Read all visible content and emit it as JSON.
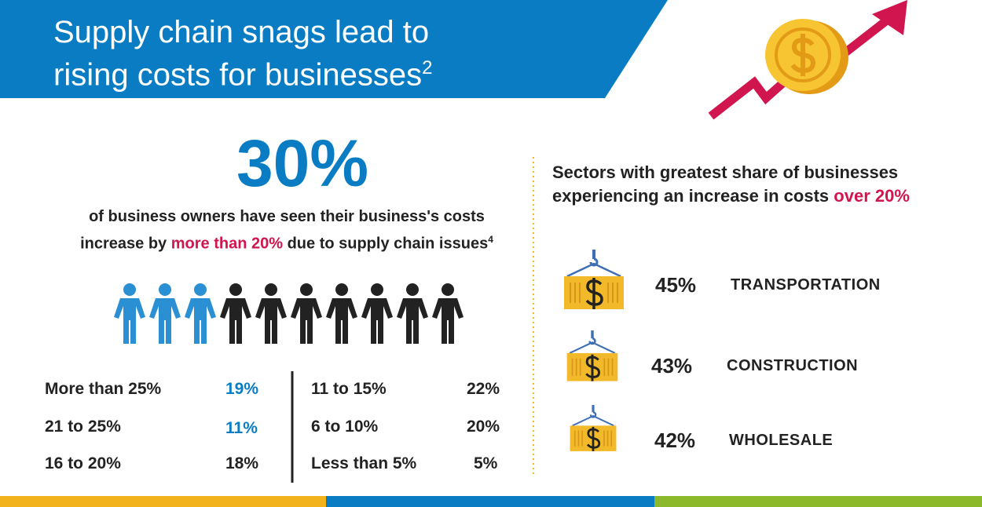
{
  "header": {
    "title": "Supply chain snags lead to rising costs for businesses",
    "footnote": "2"
  },
  "headline": {
    "stat": "30%",
    "text_before": "of business owners have seen their business's costs increase by",
    "highlight": "more than 20%",
    "text_after": "due to supply chain issues",
    "footnote": "4"
  },
  "breakdown": {
    "left": [
      [
        "More than 25%",
        "19%"
      ],
      [
        "21 to 25%",
        "11%"
      ],
      [
        "16 to 20%",
        "18%"
      ]
    ],
    "right": [
      [
        "11 to 15%",
        "22%"
      ],
      [
        "6 to 10%",
        "20%"
      ],
      [
        "Less than 5%",
        "5%"
      ]
    ]
  },
  "sectors": {
    "title": "Sectors with greatest share of businesses experiencing an increase in costs",
    "highlight": "over 20%",
    "items": [
      {
        "value": "45%",
        "label": "TRANSPORTATION"
      },
      {
        "value": "43%",
        "label": "CONSTRUCTION"
      },
      {
        "value": "42%",
        "label": "WHOLESALE"
      }
    ]
  }
}
